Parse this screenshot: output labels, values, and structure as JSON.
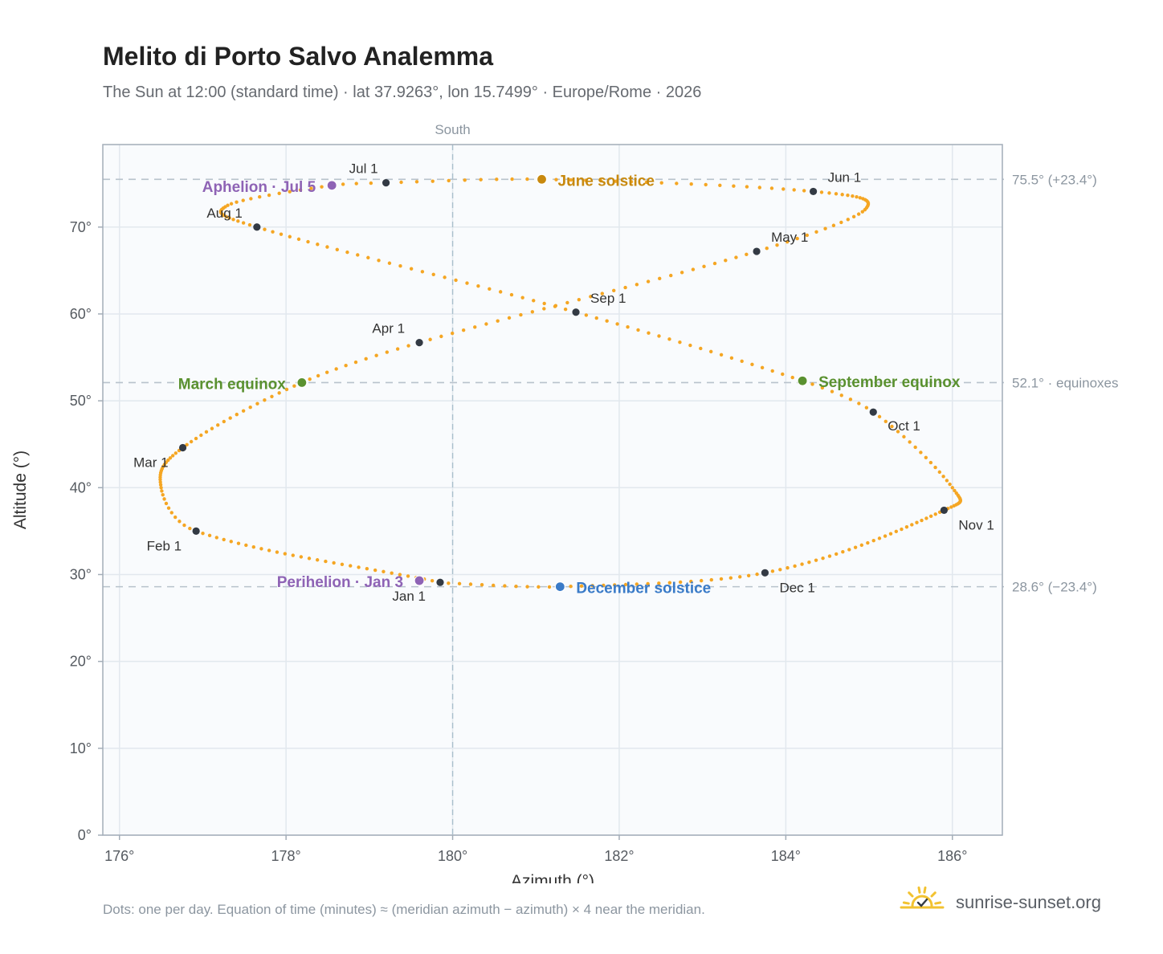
{
  "title": "Melito di Porto Salvo Analemma",
  "subtitle": "The Sun at 12:00 (standard time) · lat 37.9263°, lon 15.7499° · Europe/Rome · 2026",
  "footnote": "Dots: one per day. Equation of time (minutes) ≈ (meridian azimuth − azimuth) × 4 near the meridian.",
  "brand": "sunrise-sunset.org",
  "colors": {
    "curve": "#f5a623",
    "month_marker": "#333a44",
    "june_solstice": "#c8890e",
    "december_solstice": "#3a7bc8",
    "equinox": "#5a9130",
    "apsis": "#8e63b5",
    "plot_background": "#f9fbfd",
    "grid": "#e2e8ee",
    "reference_line": "#b8c2cc",
    "logo": "#f2c230"
  },
  "chart_data": {
    "type": "scatter",
    "xlabel": "Azimuth (°)",
    "ylabel": "Altitude (°)",
    "xlim": [
      175.8,
      186.6
    ],
    "ylim": [
      0,
      79.5
    ],
    "x_ticks": [
      176,
      178,
      180,
      182,
      184,
      186
    ],
    "x_tick_labels": [
      "176°",
      "178°",
      "180°",
      "182°",
      "184°",
      "186°"
    ],
    "y_ticks": [
      0,
      10,
      20,
      30,
      40,
      50,
      60,
      70
    ],
    "y_tick_labels": [
      "0°",
      "10°",
      "20°",
      "30°",
      "40°",
      "50°",
      "60°",
      "70°"
    ],
    "grid": true,
    "meridian": {
      "azimuth": 180,
      "label": "South"
    },
    "reference_lines": [
      {
        "altitude": 75.5,
        "label": "75.5° (+23.4°)"
      },
      {
        "altitude": 52.1,
        "label": "52.1° · equinoxes"
      },
      {
        "altitude": 28.6,
        "label": "28.6° (−23.4°)"
      }
    ],
    "month_markers": [
      {
        "label": "Jan 1",
        "azimuth": 179.85,
        "altitude": 29.1
      },
      {
        "label": "Feb 1",
        "azimuth": 176.92,
        "altitude": 35.0
      },
      {
        "label": "Mar 1",
        "azimuth": 176.76,
        "altitude": 44.6
      },
      {
        "label": "Apr 1",
        "azimuth": 179.6,
        "altitude": 56.7
      },
      {
        "label": "May 1",
        "azimuth": 183.65,
        "altitude": 67.2
      },
      {
        "label": "Jun 1",
        "azimuth": 184.33,
        "altitude": 74.1
      },
      {
        "label": "Jul 1",
        "azimuth": 179.2,
        "altitude": 75.1
      },
      {
        "label": "Aug 1",
        "azimuth": 177.65,
        "altitude": 70.0
      },
      {
        "label": "Sep 1",
        "azimuth": 181.48,
        "altitude": 60.2
      },
      {
        "label": "Oct 1",
        "azimuth": 185.05,
        "altitude": 48.7
      },
      {
        "label": "Nov 1",
        "azimuth": 185.9,
        "altitude": 37.4
      },
      {
        "label": "Dec 1",
        "azimuth": 183.75,
        "altitude": 30.2
      }
    ],
    "events": [
      {
        "label": "June solstice",
        "azimuth": 181.07,
        "altitude": 75.5,
        "color_key": "june_solstice"
      },
      {
        "label": "December solstice",
        "azimuth": 181.29,
        "altitude": 28.6,
        "color_key": "december_solstice"
      },
      {
        "label": "March equinox",
        "azimuth": 178.19,
        "altitude": 52.1,
        "color_key": "equinox"
      },
      {
        "label": "September equinox",
        "azimuth": 184.2,
        "altitude": 52.3,
        "color_key": "equinox"
      },
      {
        "label": "Aphelion · Jul 5",
        "azimuth": 178.55,
        "altitude": 74.8,
        "color_key": "apsis"
      },
      {
        "label": "Perihelion · Jan 3",
        "azimuth": 179.6,
        "altitude": 29.3,
        "color_key": "apsis"
      }
    ],
    "daily_path": [
      {
        "day": 1,
        "azimuth": 179.85,
        "altitude": 29.1
      },
      {
        "day": 32,
        "azimuth": 176.92,
        "altitude": 35.0
      },
      {
        "day": 43,
        "azimuth": 176.5,
        "altitude": 40.0
      },
      {
        "day": 60,
        "azimuth": 176.76,
        "altitude": 44.6
      },
      {
        "day": 79,
        "azimuth": 178.19,
        "altitude": 52.1
      },
      {
        "day": 91,
        "azimuth": 179.6,
        "altitude": 56.7
      },
      {
        "day": 121,
        "azimuth": 183.65,
        "altitude": 67.2
      },
      {
        "day": 135,
        "azimuth": 184.95,
        "altitude": 72.0
      },
      {
        "day": 152,
        "azimuth": 184.33,
        "altitude": 74.1
      },
      {
        "day": 172,
        "azimuth": 181.07,
        "altitude": 75.5
      },
      {
        "day": 182,
        "azimuth": 179.2,
        "altitude": 75.1
      },
      {
        "day": 186,
        "azimuth": 178.55,
        "altitude": 74.8
      },
      {
        "day": 198,
        "azimuth": 177.3,
        "altitude": 72.5
      },
      {
        "day": 213,
        "azimuth": 177.65,
        "altitude": 70.0
      },
      {
        "day": 244,
        "azimuth": 181.48,
        "altitude": 60.2
      },
      {
        "day": 266,
        "azimuth": 184.2,
        "altitude": 52.3
      },
      {
        "day": 274,
        "azimuth": 185.05,
        "altitude": 48.7
      },
      {
        "day": 290,
        "azimuth": 186.0,
        "altitude": 40.0
      },
      {
        "day": 305,
        "azimuth": 185.9,
        "altitude": 37.4
      },
      {
        "day": 335,
        "azimuth": 183.75,
        "altitude": 30.2
      },
      {
        "day": 355,
        "azimuth": 181.29,
        "altitude": 28.6
      },
      {
        "day": 365,
        "azimuth": 179.95,
        "altitude": 29.0
      }
    ]
  }
}
